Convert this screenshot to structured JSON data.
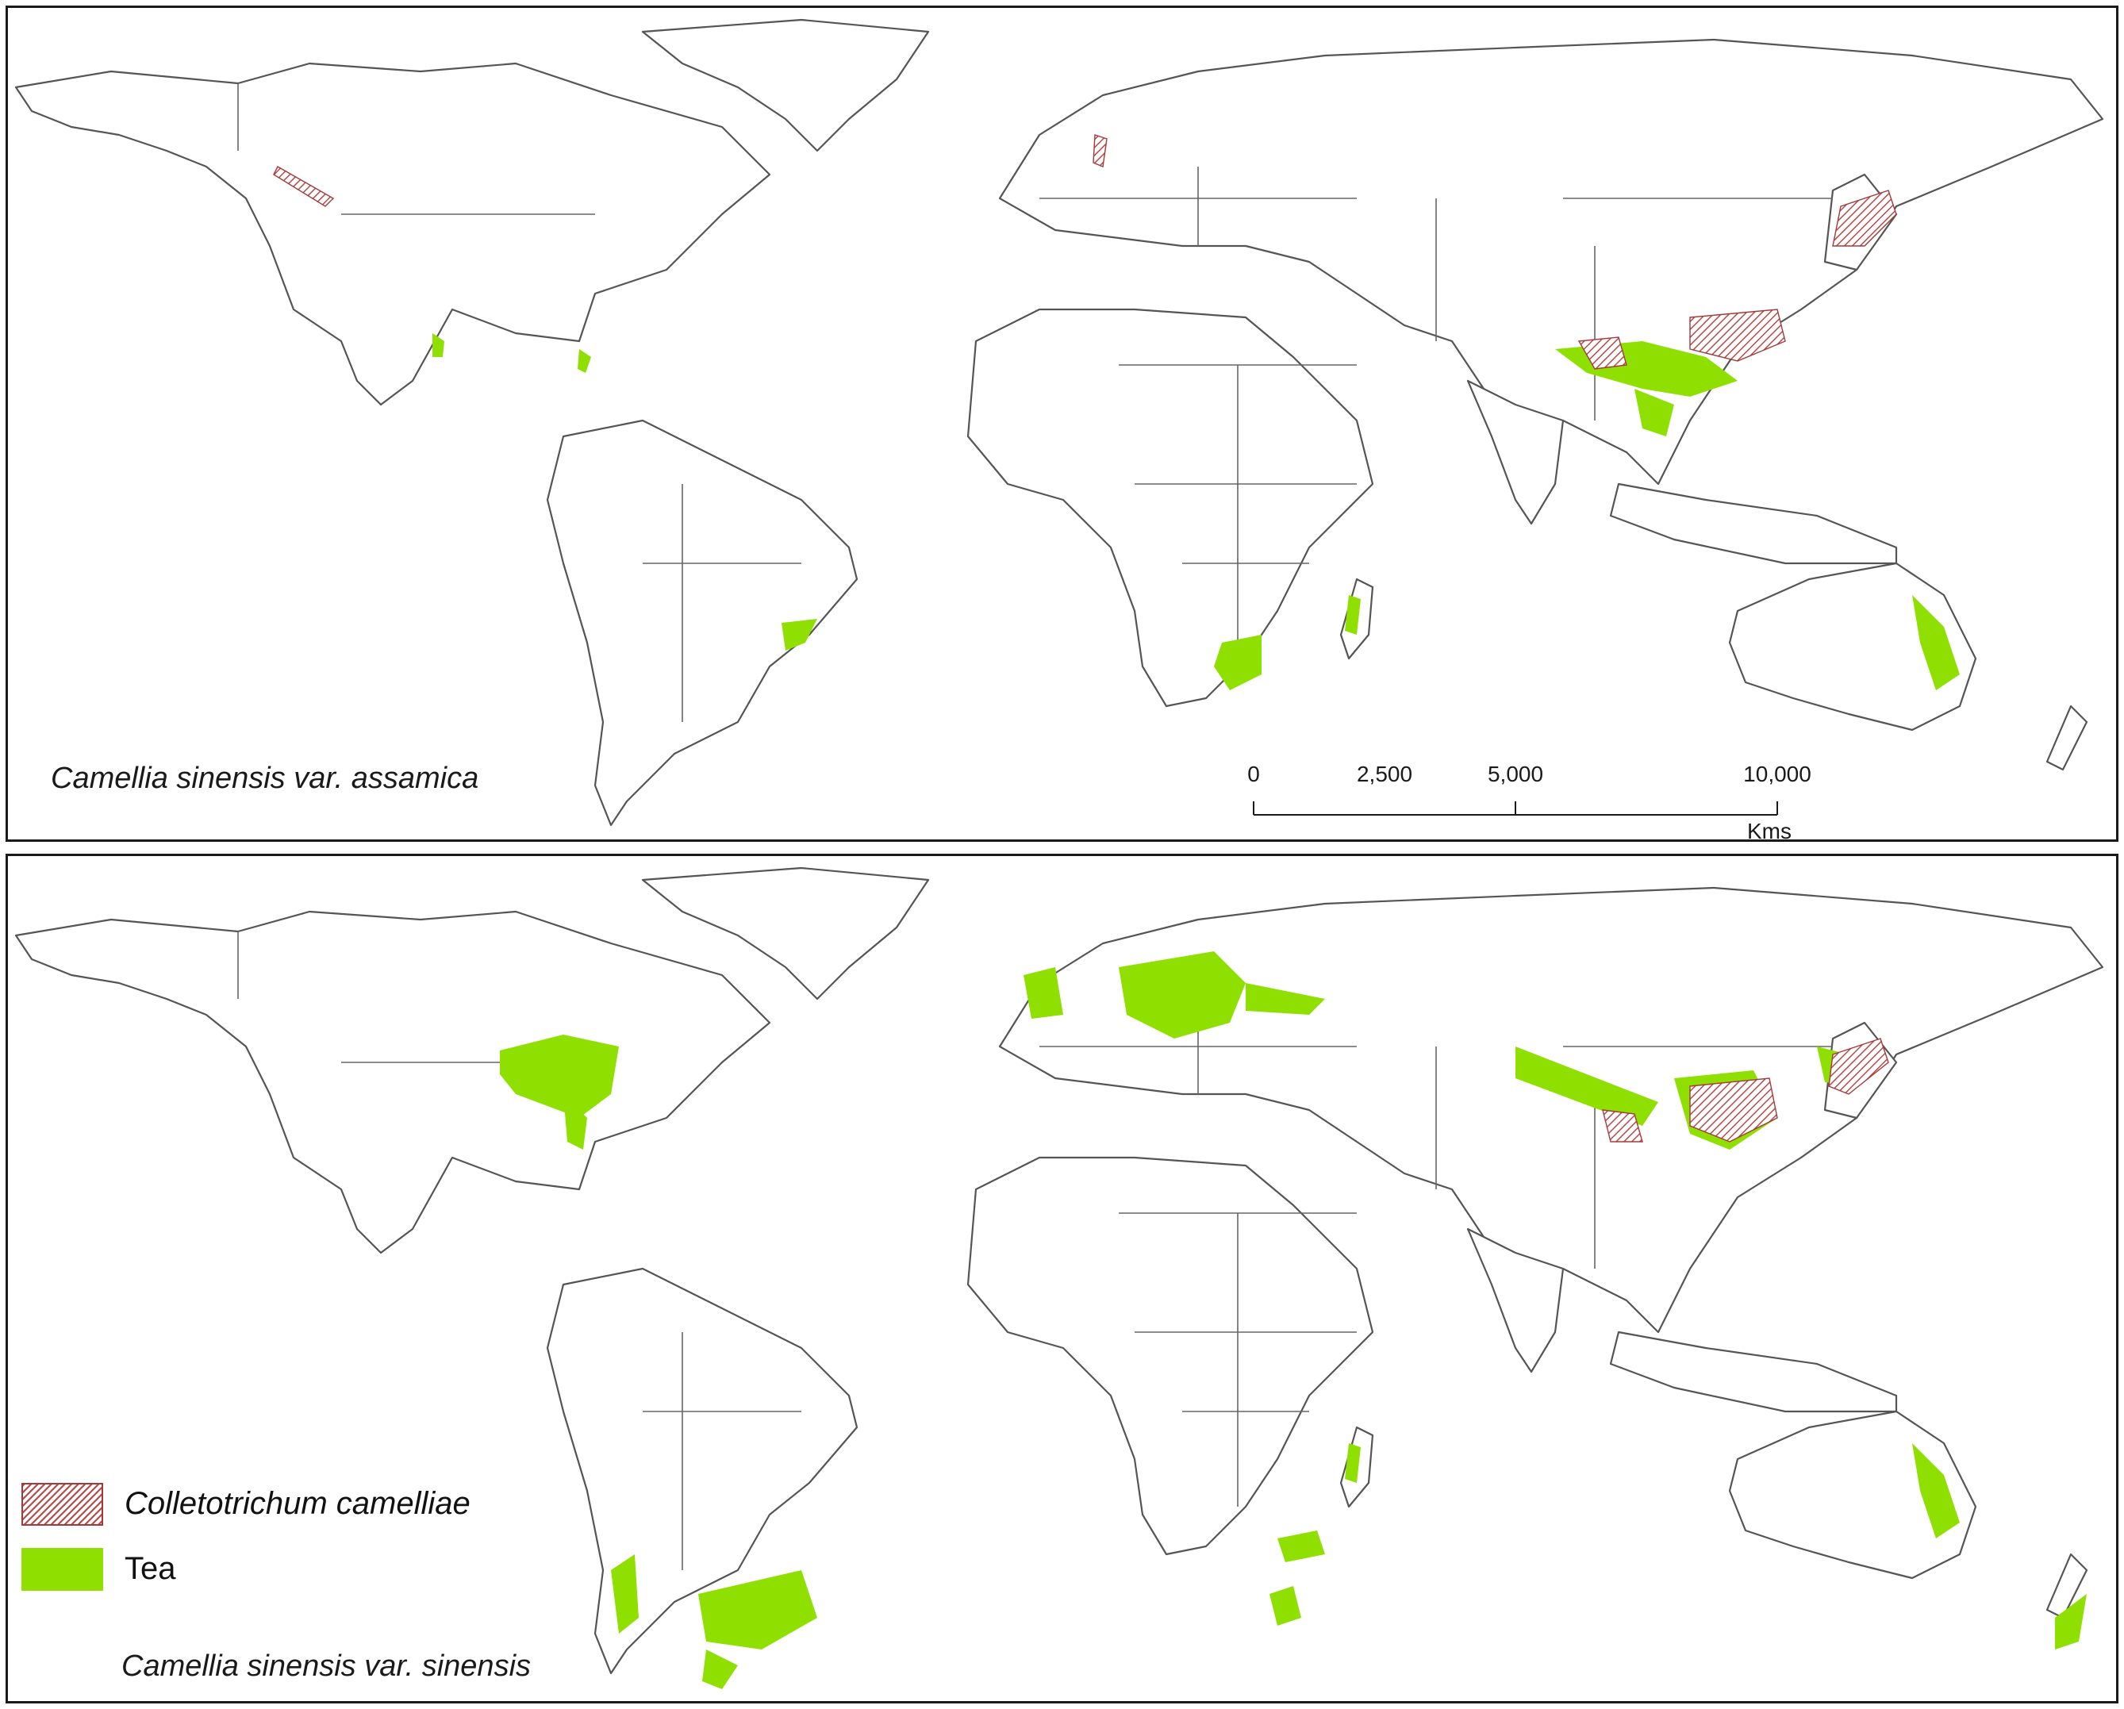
{
  "figure": {
    "panels": [
      {
        "id": "top",
        "title": "Camellia sinensis var. assamica"
      },
      {
        "id": "bottom",
        "title": "Camellia sinensis var. sinensis"
      }
    ],
    "scalebar": {
      "ticks": [
        "0",
        "2,500",
        "5,000",
        "10,000"
      ],
      "tick_values": [
        0,
        2500,
        5000,
        10000
      ],
      "unit": "Kms"
    },
    "legend": [
      {
        "label": "Colletotrichum camelliae",
        "style": "hatched",
        "color": "#a33a3a"
      },
      {
        "label": "Tea",
        "style": "solid",
        "color": "#8fe000"
      }
    ]
  }
}
